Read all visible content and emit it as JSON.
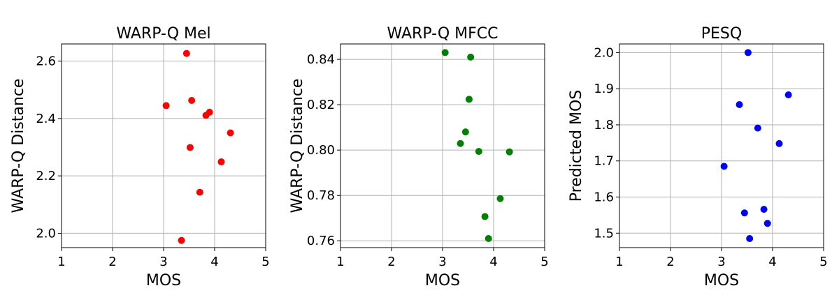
{
  "chart_data": [
    {
      "type": "scatter",
      "title": "WARP-Q Mel",
      "xlabel": "MOS",
      "ylabel": "WARP-Q Distance",
      "xlim": [
        1,
        5
      ],
      "ylim": [
        1.95,
        2.66
      ],
      "xticks": [
        "1",
        "2",
        "3",
        "4",
        "5"
      ],
      "yticks": [
        "2.0",
        "2.2",
        "2.4",
        "2.6"
      ],
      "grid": true,
      "color": "#ff0000",
      "points": [
        {
          "x": 3.45,
          "y": 2.627
        },
        {
          "x": 3.55,
          "y": 2.463
        },
        {
          "x": 3.05,
          "y": 2.445
        },
        {
          "x": 3.9,
          "y": 2.422
        },
        {
          "x": 3.83,
          "y": 2.411
        },
        {
          "x": 4.31,
          "y": 2.35
        },
        {
          "x": 3.52,
          "y": 2.299
        },
        {
          "x": 4.13,
          "y": 2.249
        },
        {
          "x": 3.71,
          "y": 2.143
        },
        {
          "x": 3.35,
          "y": 1.975
        }
      ]
    },
    {
      "type": "scatter",
      "title": "WARP-Q MFCC",
      "xlabel": "MOS",
      "ylabel": "WARP-Q Distance",
      "xlim": [
        1,
        5
      ],
      "ylim": [
        0.757,
        0.8468
      ],
      "xticks": [
        "1",
        "2",
        "3",
        "4",
        "5"
      ],
      "yticks": [
        "0.76",
        "0.78",
        "0.80",
        "0.82",
        "0.84"
      ],
      "grid": true,
      "color": "#008000",
      "points": [
        {
          "x": 3.05,
          "y": 0.843
        },
        {
          "x": 3.55,
          "y": 0.841
        },
        {
          "x": 3.52,
          "y": 0.8224
        },
        {
          "x": 3.45,
          "y": 0.808
        },
        {
          "x": 3.35,
          "y": 0.8029
        },
        {
          "x": 3.71,
          "y": 0.7994
        },
        {
          "x": 4.31,
          "y": 0.7992
        },
        {
          "x": 4.13,
          "y": 0.7786
        },
        {
          "x": 3.83,
          "y": 0.7707
        },
        {
          "x": 3.9,
          "y": 0.761
        }
      ]
    },
    {
      "type": "scatter",
      "title": "PESQ",
      "xlabel": "MOS",
      "ylabel": "Predicted MOS",
      "xlim": [
        1,
        5
      ],
      "ylim": [
        1.46,
        2.024
      ],
      "xticks": [
        "1",
        "2",
        "3",
        "4",
        "5"
      ],
      "yticks": [
        "1.5",
        "1.6",
        "1.7",
        "1.8",
        "1.9",
        "2.0"
      ],
      "grid": true,
      "color": "#0000ff",
      "points": [
        {
          "x": 3.52,
          "y": 2.0
        },
        {
          "x": 4.31,
          "y": 1.883
        },
        {
          "x": 3.35,
          "y": 1.856
        },
        {
          "x": 3.71,
          "y": 1.791
        },
        {
          "x": 4.13,
          "y": 1.748
        },
        {
          "x": 3.05,
          "y": 1.685
        },
        {
          "x": 3.83,
          "y": 1.566
        },
        {
          "x": 3.45,
          "y": 1.556
        },
        {
          "x": 3.9,
          "y": 1.527
        },
        {
          "x": 3.55,
          "y": 1.485
        }
      ]
    }
  ]
}
